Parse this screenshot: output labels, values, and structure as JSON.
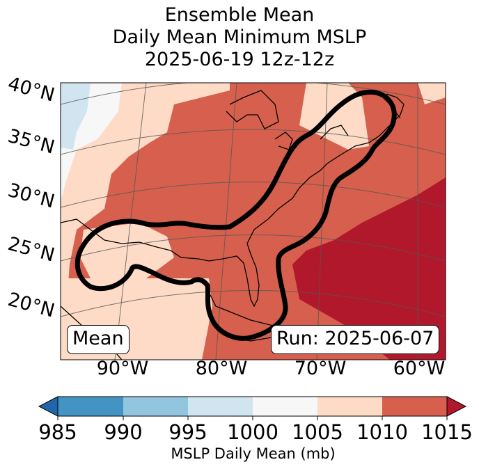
{
  "title": {
    "line1": "Ensemble Mean",
    "line2": "Daily Mean Minimum MSLP",
    "line3": "2025-06-19 12z-12z"
  },
  "map": {
    "lat_labels": [
      "40°N",
      "35°N",
      "30°N",
      "25°N",
      "20°N"
    ],
    "lon_labels": [
      "90°W",
      "80°W",
      "70°W",
      "60°W"
    ],
    "mean_box": "Mean",
    "run_box": "Run: 2025-06-07",
    "colors": {
      "below_985": "#2166ac",
      "985_990": "#4393c3",
      "990_995": "#92c5de",
      "995_1000": "#d1e5f0",
      "1000_1005": "#f7f7f7",
      "1005_1010": "#fddbc7",
      "1010_1015": "#d6604d",
      "above_1015": "#b2182b",
      "outline": "#000000"
    }
  },
  "colorbar": {
    "ticks": [
      "985",
      "990",
      "995",
      "1000",
      "1005",
      "1010",
      "1015"
    ],
    "label": "MSLP Daily Mean (mb)"
  }
}
